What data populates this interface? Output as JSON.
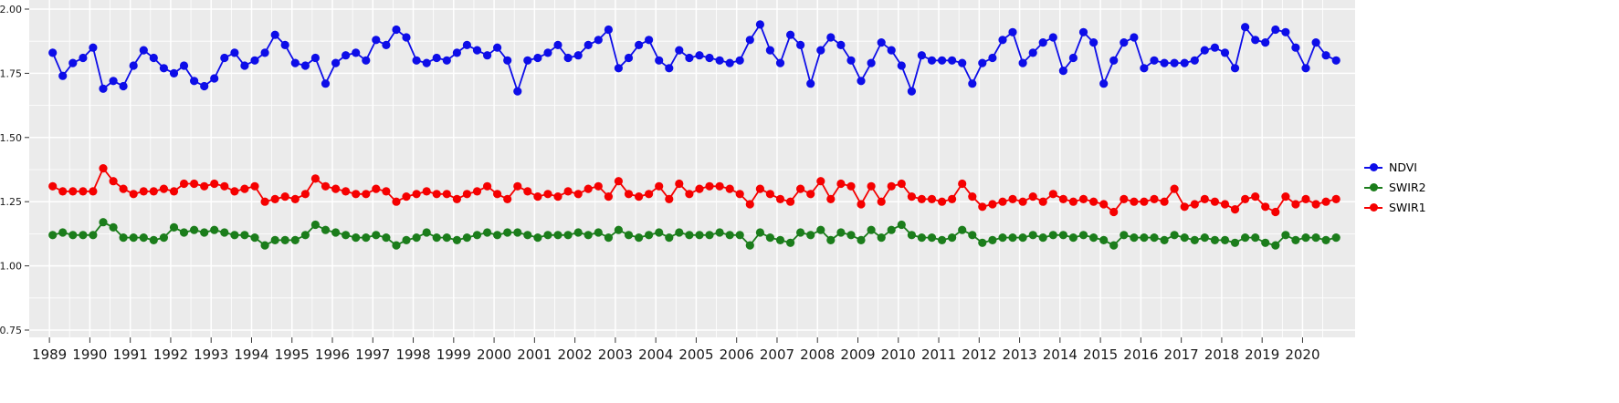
{
  "chart_data": {
    "type": "line",
    "title": "",
    "xlabel": "",
    "ylabel": "",
    "legend_position": "right",
    "grid": true,
    "panel_bg": "#EBEBEB",
    "grid_color": "#FFFFFF",
    "xlim": [
      1988.5,
      2021.3
    ],
    "ylim": [
      0.75,
      2.0
    ],
    "x_ticks": [
      1989,
      1990,
      1991,
      1992,
      1993,
      1994,
      1995,
      1996,
      1997,
      1998,
      1999,
      2000,
      2001,
      2002,
      2003,
      2004,
      2005,
      2006,
      2007,
      2008,
      2009,
      2010,
      2011,
      2012,
      2013,
      2014,
      2015,
      2016,
      2017,
      2018,
      2019,
      2020
    ],
    "y_tick_values": [
      2.0,
      1.75,
      1.5,
      1.25,
      1.0,
      0.75
    ],
    "y_tick_labels": [
      "2.00",
      "1.75",
      "1.50",
      "1.25",
      "1.00",
      "0.75"
    ],
    "x": [
      1989.08,
      1989.33,
      1989.58,
      1989.83,
      1990.08,
      1990.33,
      1990.58,
      1990.83,
      1991.08,
      1991.33,
      1991.58,
      1991.83,
      1992.08,
      1992.33,
      1992.58,
      1992.83,
      1993.08,
      1993.33,
      1993.58,
      1993.83,
      1994.08,
      1994.33,
      1994.58,
      1994.83,
      1995.08,
      1995.33,
      1995.58,
      1995.83,
      1996.08,
      1996.33,
      1996.58,
      1996.83,
      1997.08,
      1997.33,
      1997.58,
      1997.83,
      1998.08,
      1998.33,
      1998.58,
      1998.83,
      1999.08,
      1999.33,
      1999.58,
      1999.83,
      2000.08,
      2000.33,
      2000.58,
      2000.83,
      2001.08,
      2001.33,
      2001.58,
      2001.83,
      2002.08,
      2002.33,
      2002.58,
      2002.83,
      2003.08,
      2003.33,
      2003.58,
      2003.83,
      2004.08,
      2004.33,
      2004.58,
      2004.83,
      2005.08,
      2005.33,
      2005.58,
      2005.83,
      2006.08,
      2006.33,
      2006.58,
      2006.83,
      2007.08,
      2007.33,
      2007.58,
      2007.83,
      2008.08,
      2008.33,
      2008.58,
      2008.83,
      2009.08,
      2009.33,
      2009.58,
      2009.83,
      2010.08,
      2010.33,
      2010.58,
      2010.83,
      2011.08,
      2011.33,
      2011.58,
      2011.83,
      2012.08,
      2012.33,
      2012.58,
      2012.83,
      2013.08,
      2013.33,
      2013.58,
      2013.83,
      2014.08,
      2014.33,
      2014.58,
      2014.83,
      2015.08,
      2015.33,
      2015.58,
      2015.83,
      2016.08,
      2016.33,
      2016.58,
      2016.83,
      2017.08,
      2017.33,
      2017.58,
      2017.83,
      2018.08,
      2018.33,
      2018.58,
      2018.83,
      2019.08,
      2019.33,
      2019.58,
      2019.83,
      2020.08,
      2020.33,
      2020.58,
      2020.83
    ],
    "series": [
      {
        "name": "NDVI",
        "color": "#0D0DE8",
        "values": [
          1.83,
          1.74,
          1.79,
          1.81,
          1.85,
          1.69,
          1.72,
          1.7,
          1.78,
          1.84,
          1.81,
          1.77,
          1.75,
          1.78,
          1.72,
          1.7,
          1.73,
          1.81,
          1.83,
          1.78,
          1.8,
          1.83,
          1.9,
          1.86,
          1.79,
          1.78,
          1.81,
          1.71,
          1.79,
          1.82,
          1.83,
          1.8,
          1.88,
          1.86,
          1.92,
          1.89,
          1.8,
          1.79,
          1.81,
          1.8,
          1.83,
          1.86,
          1.84,
          1.82,
          1.85,
          1.8,
          1.68,
          1.8,
          1.81,
          1.83,
          1.86,
          1.81,
          1.82,
          1.86,
          1.88,
          1.92,
          1.77,
          1.81,
          1.86,
          1.88,
          1.8,
          1.77,
          1.84,
          1.81,
          1.82,
          1.81,
          1.8,
          1.79,
          1.8,
          1.88,
          1.94,
          1.84,
          1.79,
          1.9,
          1.86,
          1.71,
          1.84,
          1.89,
          1.86,
          1.8,
          1.72,
          1.79,
          1.87,
          1.84,
          1.78,
          1.68,
          1.82,
          1.8,
          1.8,
          1.8,
          1.79,
          1.71,
          1.79,
          1.81,
          1.88,
          1.91,
          1.79,
          1.83,
          1.87,
          1.89,
          1.76,
          1.81,
          1.91,
          1.87,
          1.71,
          1.8,
          1.87,
          1.89,
          1.77,
          1.8,
          1.79,
          1.79,
          1.79,
          1.8,
          1.84,
          1.85,
          1.83,
          1.77,
          1.93,
          1.88,
          1.87,
          1.92,
          1.91,
          1.85,
          1.77,
          1.87,
          1.82,
          1.8
        ]
      },
      {
        "name": "SWIR2",
        "color": "#1B7D1B",
        "values": [
          1.12,
          1.13,
          1.12,
          1.12,
          1.12,
          1.17,
          1.15,
          1.11,
          1.11,
          1.11,
          1.1,
          1.11,
          1.15,
          1.13,
          1.14,
          1.13,
          1.14,
          1.13,
          1.12,
          1.12,
          1.11,
          1.08,
          1.1,
          1.1,
          1.1,
          1.12,
          1.16,
          1.14,
          1.13,
          1.12,
          1.11,
          1.11,
          1.12,
          1.11,
          1.08,
          1.1,
          1.11,
          1.13,
          1.11,
          1.11,
          1.1,
          1.11,
          1.12,
          1.13,
          1.12,
          1.13,
          1.13,
          1.12,
          1.11,
          1.12,
          1.12,
          1.12,
          1.13,
          1.12,
          1.13,
          1.11,
          1.14,
          1.12,
          1.11,
          1.12,
          1.13,
          1.11,
          1.13,
          1.12,
          1.12,
          1.12,
          1.13,
          1.12,
          1.12,
          1.08,
          1.13,
          1.11,
          1.1,
          1.09,
          1.13,
          1.12,
          1.14,
          1.1,
          1.13,
          1.12,
          1.1,
          1.14,
          1.11,
          1.14,
          1.16,
          1.12,
          1.11,
          1.11,
          1.1,
          1.11,
          1.14,
          1.12,
          1.09,
          1.1,
          1.11,
          1.11,
          1.11,
          1.12,
          1.11,
          1.12,
          1.12,
          1.11,
          1.12,
          1.11,
          1.1,
          1.08,
          1.12,
          1.11,
          1.11,
          1.11,
          1.1,
          1.12,
          1.11,
          1.1,
          1.11,
          1.1,
          1.1,
          1.09,
          1.11,
          1.11,
          1.09,
          1.08,
          1.12,
          1.1,
          1.11,
          1.11,
          1.1,
          1.11
        ]
      },
      {
        "name": "SWIR1",
        "color": "#F50000",
        "values": [
          1.31,
          1.29,
          1.29,
          1.29,
          1.29,
          1.38,
          1.33,
          1.3,
          1.28,
          1.29,
          1.29,
          1.3,
          1.29,
          1.32,
          1.32,
          1.31,
          1.32,
          1.31,
          1.29,
          1.3,
          1.31,
          1.25,
          1.26,
          1.27,
          1.26,
          1.28,
          1.34,
          1.31,
          1.3,
          1.29,
          1.28,
          1.28,
          1.3,
          1.29,
          1.25,
          1.27,
          1.28,
          1.29,
          1.28,
          1.28,
          1.26,
          1.28,
          1.29,
          1.31,
          1.28,
          1.26,
          1.31,
          1.29,
          1.27,
          1.28,
          1.27,
          1.29,
          1.28,
          1.3,
          1.31,
          1.27,
          1.33,
          1.28,
          1.27,
          1.28,
          1.31,
          1.26,
          1.32,
          1.28,
          1.3,
          1.31,
          1.31,
          1.3,
          1.28,
          1.24,
          1.3,
          1.28,
          1.26,
          1.25,
          1.3,
          1.28,
          1.33,
          1.26,
          1.32,
          1.31,
          1.24,
          1.31,
          1.25,
          1.31,
          1.32,
          1.27,
          1.26,
          1.26,
          1.25,
          1.26,
          1.32,
          1.27,
          1.23,
          1.24,
          1.25,
          1.26,
          1.25,
          1.27,
          1.25,
          1.28,
          1.26,
          1.25,
          1.26,
          1.25,
          1.24,
          1.21,
          1.26,
          1.25,
          1.25,
          1.26,
          1.25,
          1.3,
          1.23,
          1.24,
          1.26,
          1.25,
          1.24,
          1.22,
          1.26,
          1.27,
          1.23,
          1.21,
          1.27,
          1.24,
          1.26,
          1.24,
          1.25,
          1.26
        ]
      }
    ],
    "legend": {
      "items": [
        "NDVI",
        "SWIR2",
        "SWIR1"
      ]
    }
  }
}
